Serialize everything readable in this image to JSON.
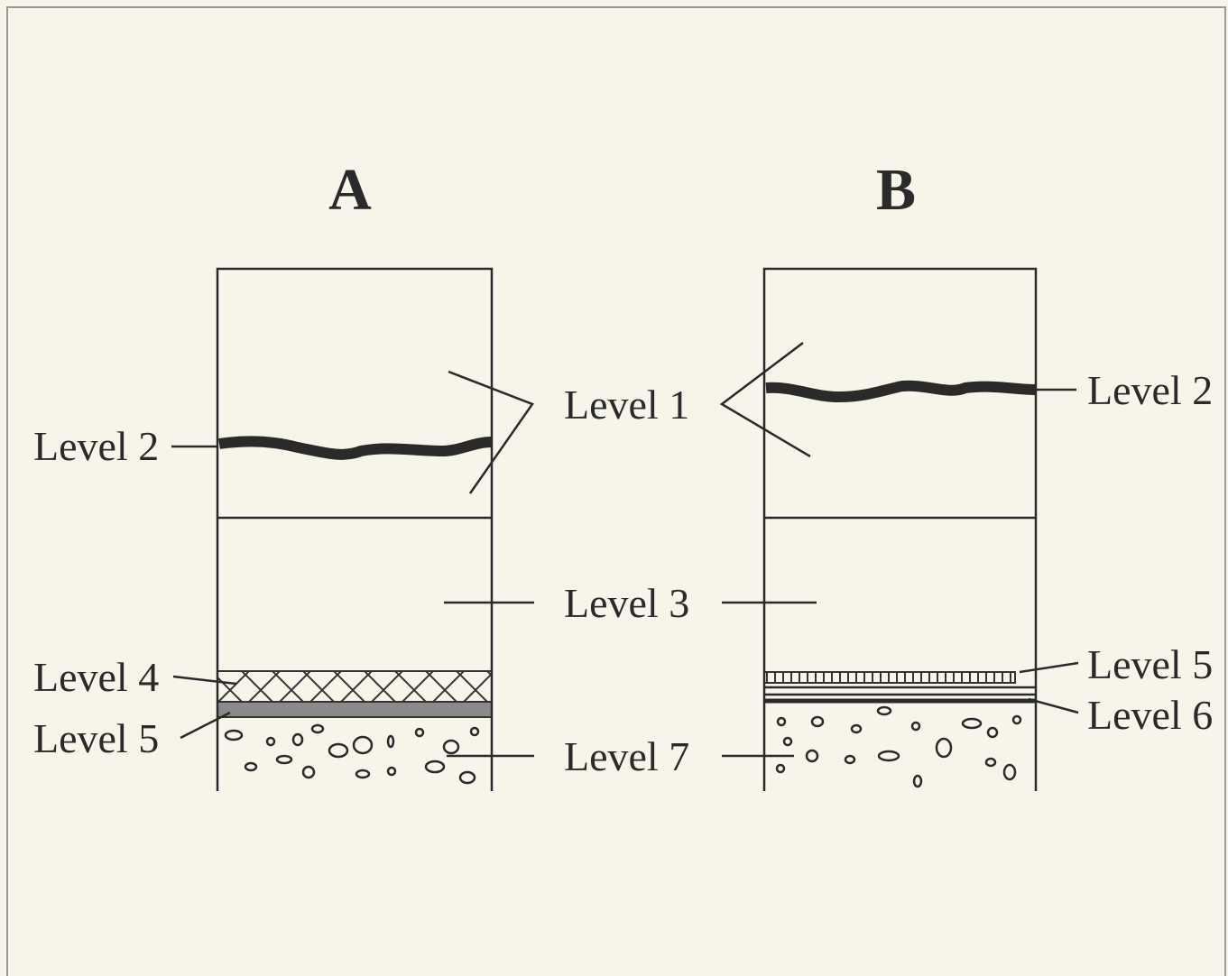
{
  "columns": [
    {
      "title": "A",
      "labels": [
        "Level 2",
        "Level 4",
        "Level 5"
      ]
    },
    {
      "title": "B",
      "labels": [
        "Level 2",
        "Level 5",
        "Level 6"
      ]
    }
  ],
  "shared_labels": [
    "Level 1",
    "Level 3",
    "Level 7"
  ]
}
